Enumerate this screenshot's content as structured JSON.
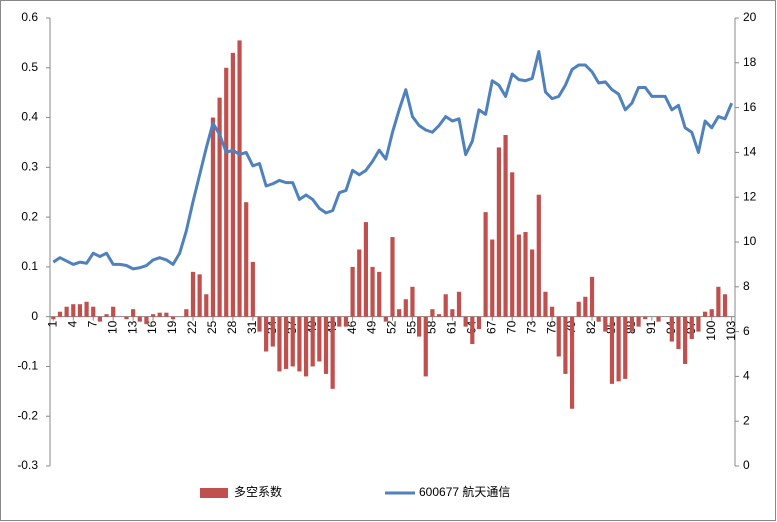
{
  "chart_data": {
    "type": "combo",
    "categories": [
      "1",
      null,
      null,
      "4",
      null,
      null,
      "7",
      null,
      null,
      "10",
      null,
      null,
      "13",
      null,
      null,
      "16",
      null,
      null,
      "19",
      null,
      null,
      "22",
      null,
      null,
      "25",
      null,
      null,
      "28",
      null,
      null,
      "31",
      null,
      null,
      "34",
      null,
      null,
      "37",
      null,
      null,
      "40",
      null,
      null,
      "43",
      null,
      null,
      "46",
      null,
      null,
      "49",
      null,
      null,
      "52",
      null,
      null,
      "55",
      null,
      null,
      "58",
      null,
      null,
      "61",
      null,
      null,
      "64",
      null,
      null,
      "67",
      null,
      null,
      "70",
      null,
      null,
      "73",
      null,
      null,
      "76",
      null,
      null,
      "79",
      null,
      null,
      "82",
      null,
      null,
      "85",
      null,
      null,
      "88",
      null,
      null,
      "91",
      null,
      null,
      "94",
      null,
      null,
      "97",
      null,
      null,
      "100",
      null,
      null,
      "103"
    ],
    "series": [
      {
        "name": "多空系数",
        "type": "bar",
        "axis": "y",
        "color": "#c0504d",
        "values": [
          -0.005,
          0.01,
          0.02,
          0.025,
          0.025,
          0.03,
          0.02,
          -0.01,
          0.005,
          0.02,
          0,
          -0.005,
          0.015,
          -0.01,
          -0.015,
          0.005,
          0.008,
          0.008,
          -0.005,
          0,
          0.015,
          0.09,
          0.085,
          0.045,
          0.4,
          0.44,
          0.5,
          0.53,
          0.555,
          0.23,
          0.11,
          -0.03,
          -0.07,
          -0.06,
          -0.11,
          -0.105,
          -0.1,
          -0.11,
          -0.12,
          -0.1,
          -0.09,
          -0.115,
          -0.145,
          -0.02,
          -0.02,
          0.1,
          0.135,
          0.19,
          0.1,
          0.09,
          -0.01,
          0.16,
          0.015,
          0.035,
          0.06,
          -0.04,
          -0.12,
          0.015,
          0.005,
          0.045,
          0.015,
          0.05,
          -0.02,
          -0.055,
          -0.025,
          0.21,
          0.155,
          0.34,
          0.365,
          0.29,
          0.165,
          0.17,
          0.135,
          0.245,
          0.05,
          0.02,
          -0.08,
          -0.115,
          -0.185,
          0.03,
          0.04,
          0.08,
          -0.01,
          -0.03,
          -0.135,
          -0.13,
          -0.125,
          -0.03,
          -0.02,
          -0.005,
          0,
          -0.01,
          0,
          -0.05,
          -0.065,
          -0.095,
          -0.045,
          -0.03,
          0.01,
          0.015,
          0.06,
          0.045,
          0
        ]
      },
      {
        "name": "600677 航天通信",
        "type": "line",
        "axis": "y2",
        "color": "#4f81bd",
        "values": [
          9.1,
          9.3,
          9.15,
          9.0,
          9.1,
          9.05,
          9.5,
          9.35,
          9.5,
          9.0,
          9.0,
          8.95,
          8.8,
          8.85,
          8.95,
          9.2,
          9.3,
          9.2,
          9.0,
          9.5,
          10.5,
          11.8,
          13.0,
          14.2,
          15.3,
          14.8,
          14.0,
          14.1,
          13.9,
          14.0,
          13.4,
          13.5,
          12.5,
          12.6,
          12.75,
          12.65,
          12.65,
          11.9,
          12.1,
          11.9,
          11.5,
          11.3,
          11.4,
          12.2,
          12.3,
          13.2,
          13.0,
          13.2,
          13.6,
          14.1,
          13.7,
          14.9,
          15.9,
          16.8,
          15.6,
          15.2,
          15.0,
          14.9,
          15.2,
          15.6,
          15.4,
          15.5,
          13.9,
          14.5,
          15.9,
          15.7,
          17.2,
          17.0,
          16.5,
          17.5,
          17.25,
          17.2,
          17.3,
          18.5,
          16.7,
          16.4,
          16.5,
          17.0,
          17.7,
          17.9,
          17.9,
          17.6,
          17.1,
          17.15,
          16.8,
          16.6,
          15.9,
          16.2,
          16.9,
          16.9,
          16.5,
          16.5,
          16.5,
          15.9,
          16.1,
          15.1,
          14.9,
          14.0,
          15.4,
          15.1,
          15.6,
          15.5,
          16.2
        ]
      }
    ],
    "ylim": [
      -0.3,
      0.6
    ],
    "yticks": [
      -0.3,
      -0.2,
      -0.1,
      0,
      0.1,
      0.2,
      0.3,
      0.4,
      0.5,
      0.6
    ],
    "y2lim": [
      0,
      20
    ],
    "y2ticks": [
      0,
      2,
      4,
      6,
      8,
      10,
      12,
      14,
      16,
      18,
      20
    ]
  }
}
